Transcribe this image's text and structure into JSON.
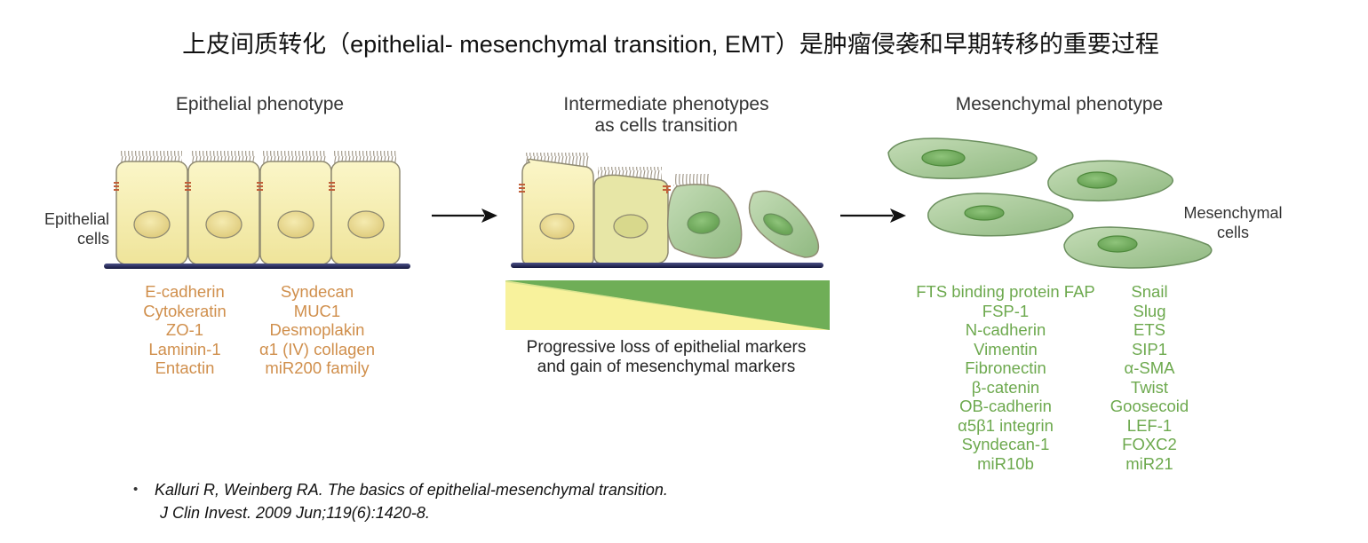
{
  "title": "上皮间质转化（epithelial- mesenchymal transition, EMT）是肿瘤侵袭和早期转移的重要过程",
  "panels": {
    "epithelial": {
      "heading": "Epithelial phenotype",
      "side_label": [
        "Epithelial",
        "cells"
      ],
      "markers_left": [
        "E-cadherin",
        "Cytokeratin",
        "ZO-1",
        "Laminin-1",
        "Entactin"
      ],
      "markers_right": [
        "Syndecan",
        "MUC1",
        "Desmoplakin",
        "α1 (IV) collagen",
        "miR200 family"
      ]
    },
    "intermediate": {
      "heading": [
        "Intermediate phenotypes",
        "as cells transition"
      ],
      "caption": [
        "Progressive loss of epithelial markers",
        "and gain of mesenchymal markers"
      ]
    },
    "mesenchymal": {
      "heading": "Mesenchymal phenotype",
      "side_label": [
        "Mesenchymal",
        "cells"
      ],
      "markers_left": [
        "FTS binding protein FAP",
        "FSP-1",
        "N-cadherin",
        "Vimentin",
        "Fibronectin",
        "β-catenin",
        "OB-cadherin",
        "α5β1 integrin",
        "Syndecan-1",
        "miR10b"
      ],
      "markers_right": [
        "Snail",
        "Slug",
        "ETS",
        "SIP1",
        "α-SMA",
        "Twist",
        "Goosecoid",
        "LEF-1",
        "FOXC2",
        "miR21"
      ]
    }
  },
  "citation": {
    "bullet": "•",
    "line1": "Kalluri R, Weinberg RA. The basics of epithelial-mesenchymal transition.",
    "line2": "J Clin Invest. 2009 Jun;119(6):1420-8."
  },
  "colors": {
    "epithelial_cell": "#f6eeaa",
    "cell_border": "#8f8a72",
    "nucleus_epithelial": "#eadb8c",
    "mesenchymal_cell": "#a9c99a",
    "nucleus_mesenchymal": "#74ac60",
    "basement_membrane": "#1f2255",
    "junction": "#c0603a",
    "epithelial_marker_text": "#d08f4c",
    "mesenchymal_marker_text": "#6da94e",
    "gradient_yellow": "#f8f29c",
    "gradient_green": "#6fae57"
  }
}
